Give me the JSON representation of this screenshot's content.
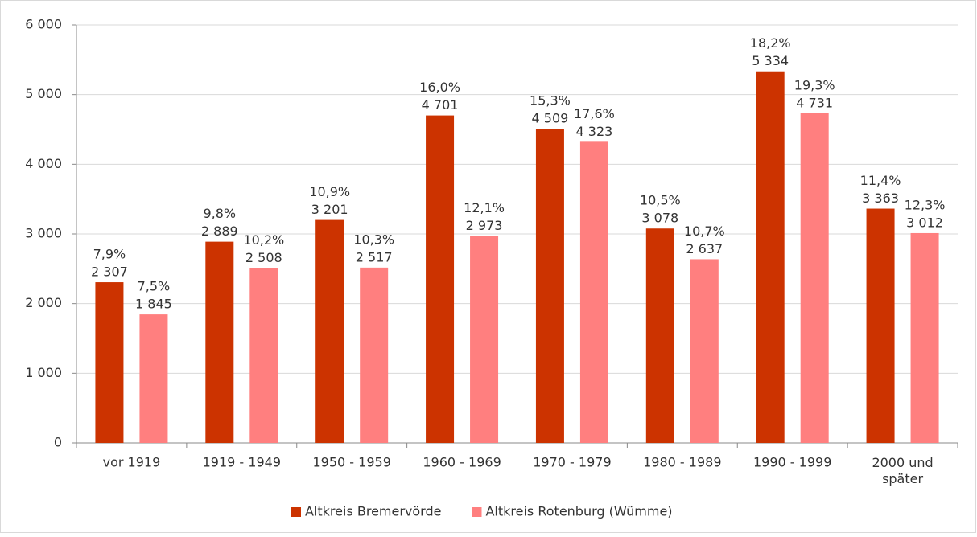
{
  "chart_data": {
    "type": "bar",
    "categories": [
      "vor 1919",
      "1919 - 1949",
      "1950 - 1959",
      "1960 - 1969",
      "1970 - 1979",
      "1980 - 1989",
      "1990 - 1999",
      "2000 und\nspäter"
    ],
    "series": [
      {
        "name": "Altkreis Bremervörde",
        "color": "#cc3300",
        "values": [
          2307,
          2889,
          3201,
          4701,
          4509,
          3078,
          5334,
          3363
        ],
        "value_labels": [
          "2 307",
          "2 889",
          "3 201",
          "4 701",
          "4 509",
          "3 078",
          "5 334",
          "3 363"
        ],
        "share_labels": [
          "7,9%",
          "9,8%",
          "10,9%",
          "16,0%",
          "15,3%",
          "10,5%",
          "18,2%",
          "11,4%"
        ]
      },
      {
        "name": "Altkreis Rotenburg (Wümme)",
        "color": "#ff7f7f",
        "values": [
          1845,
          2508,
          2517,
          2973,
          4323,
          2637,
          4731,
          3012
        ],
        "value_labels": [
          "1 845",
          "2 508",
          "2 517",
          "2 973",
          "4 323",
          "2 637",
          "4 731",
          "3 012"
        ],
        "share_labels": [
          "7,5%",
          "10,2%",
          "10,3%",
          "12,1%",
          "17,6%",
          "10,7%",
          "19,3%",
          "12,3%"
        ]
      }
    ],
    "ylim": [
      0,
      6000
    ],
    "yticks": [
      0,
      {
        "value": 1000,
        "label": "1 000"
      },
      {
        "value": 2000,
        "label": "2 000"
      },
      {
        "value": 3000,
        "label": "3 000"
      },
      {
        "value": 4000,
        "label": "4 000"
      },
      {
        "value": 5000,
        "label": "5 000"
      },
      {
        "value": 6000,
        "label": "6 000"
      }
    ],
    "grid": true,
    "legend": "bottom"
  }
}
